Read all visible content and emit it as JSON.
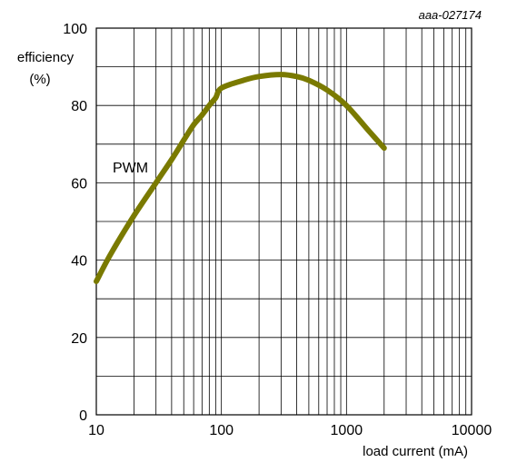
{
  "chart_data": {
    "type": "line",
    "figure_id": "aaa-027174",
    "xlabel": "load current (mA)",
    "ylabel_line1": "efficiency",
    "ylabel_line2": "(%)",
    "x_scale": "log",
    "xlim": [
      10,
      10000
    ],
    "ylim": [
      0,
      100
    ],
    "grid": true,
    "x_tick_labels": [
      "10",
      "100",
      "1000",
      "10000"
    ],
    "x_tick_values": [
      10,
      100,
      1000,
      10000
    ],
    "y_tick_labels": [
      "0",
      "20",
      "40",
      "60",
      "80",
      "100"
    ],
    "y_tick_values": [
      0,
      20,
      40,
      60,
      80,
      100
    ],
    "line_color": "#7a7a00",
    "series": [
      {
        "name": "PWM",
        "x": [
          10,
          13,
          20,
          30,
          40,
          50,
          60,
          70,
          80,
          90,
          100,
          150,
          200,
          300,
          400,
          500,
          700,
          1000,
          1500,
          2000
        ],
        "y": [
          34.5,
          41.5,
          51.5,
          60,
          66,
          71,
          75,
          77.5,
          80,
          82,
          84.5,
          86.5,
          87.5,
          88,
          87.5,
          86.5,
          84,
          80,
          73.5,
          69
        ]
      }
    ]
  }
}
